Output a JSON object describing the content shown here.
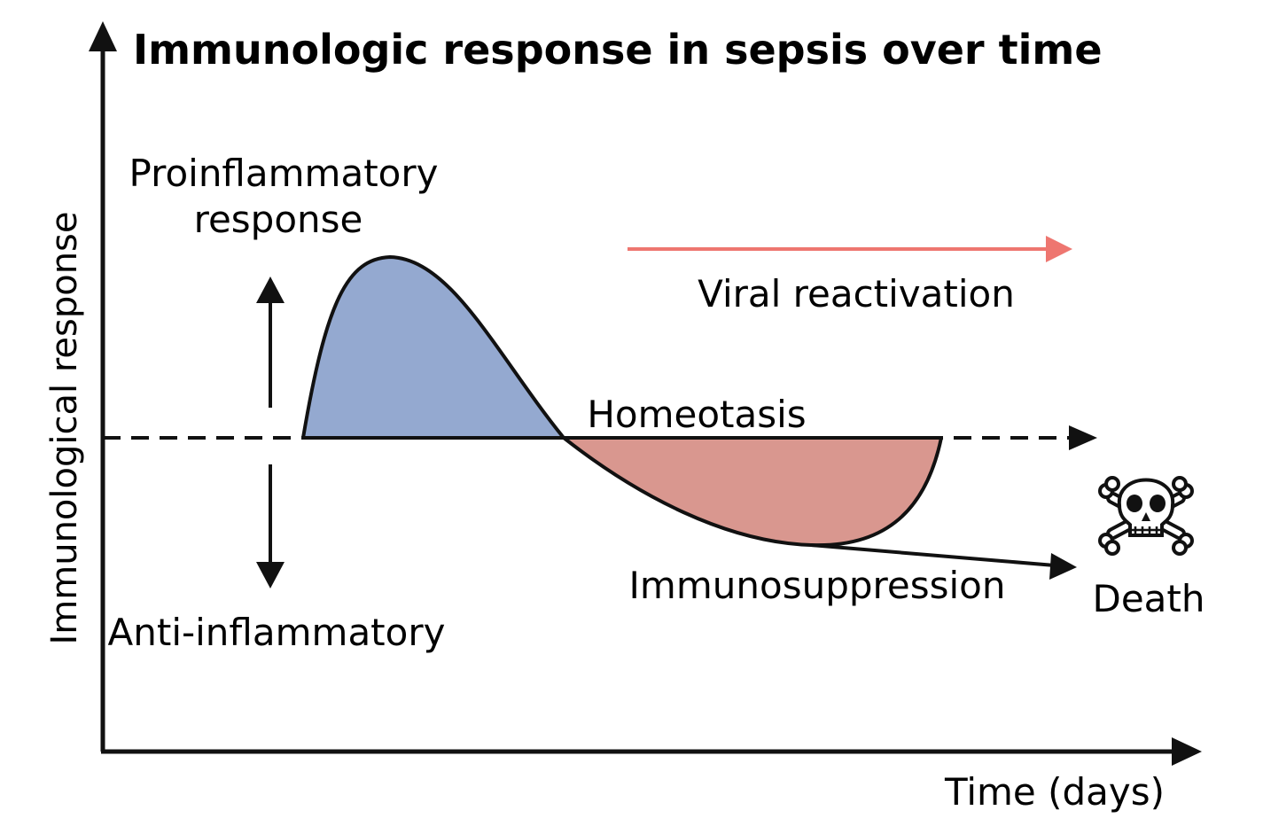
{
  "title": "Immunologic response  in sepsis over time",
  "y_axis_label": "Immunological response",
  "x_axis_label": "Time (days)",
  "labels": {
    "proinflammatory_line1": "Proinflammatory",
    "proinflammatory_line2": "response",
    "anti_inflammatory": "Anti-inflammatory",
    "homeostasis": "Homeotasis",
    "viral_reactivation": "Viral reactivation",
    "immunosuppression": "Immunosuppression",
    "death": "Death"
  },
  "icons": {
    "death": "skull-and-crossbones-icon"
  },
  "colors": {
    "proinflammatory_fill": "#94a9d0",
    "immunosuppression_fill": "#d9978f",
    "viral_arrow": "#ee7670",
    "ink": "#111111"
  }
}
